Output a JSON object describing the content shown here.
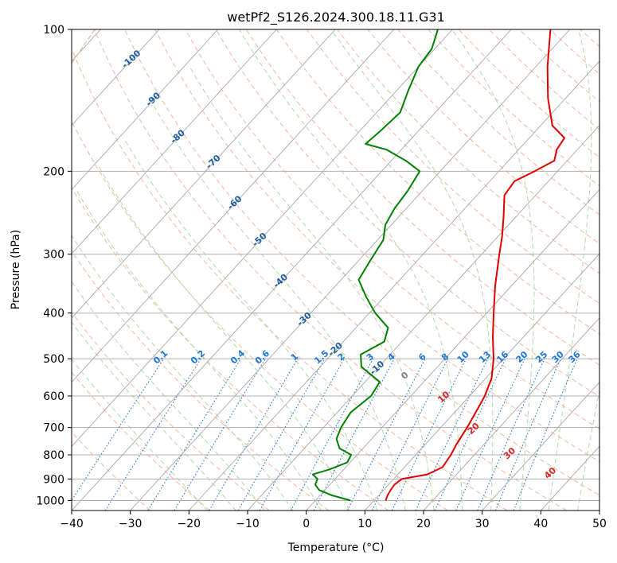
{
  "chart_data": {
    "type": "line",
    "diagram": "skew-T log-P",
    "title": "wetPf2_S126.2024.300.18.11.G31",
    "xlabel": "Temperature (°C)",
    "ylabel": "Pressure (hPa)",
    "xlim": [
      -40,
      50
    ],
    "ylim_hpa": [
      1050,
      100
    ],
    "y_scale": "log",
    "x_ticks": [
      "−40",
      "−30",
      "−20",
      "−10",
      "0",
      "10",
      "20",
      "30",
      "40",
      "50"
    ],
    "y_ticks": [
      "100",
      "200",
      "300",
      "400",
      "500",
      "600",
      "700",
      "800",
      "900",
      "1000"
    ],
    "grid": "horizontal isobars",
    "series": [
      {
        "key": "temperature",
        "color": "#e00000",
        "points": [
          [
            1000,
            12.0
          ],
          [
            975,
            11.5
          ],
          [
            950,
            11.2
          ],
          [
            925,
            11.0
          ],
          [
            900,
            11.4
          ],
          [
            880,
            15.0
          ],
          [
            850,
            16.5
          ],
          [
            800,
            16.0
          ],
          [
            760,
            15.3
          ],
          [
            700,
            14.5
          ],
          [
            650,
            13.6
          ],
          [
            600,
            12.6
          ],
          [
            550,
            11.0
          ],
          [
            500,
            8.3
          ],
          [
            450,
            4.8
          ],
          [
            400,
            1.2
          ],
          [
            350,
            -2.8
          ],
          [
            300,
            -7.0
          ],
          [
            275,
            -9.3
          ],
          [
            250,
            -12.1
          ],
          [
            225,
            -15.3
          ],
          [
            210,
            -15.8
          ],
          [
            200,
            -13.9
          ],
          [
            190,
            -12.2
          ],
          [
            180,
            -13.5
          ],
          [
            170,
            -14.0
          ],
          [
            160,
            -18.0
          ],
          [
            140,
            -23.0
          ],
          [
            120,
            -28.0
          ],
          [
            100,
            -33.3
          ]
        ]
      },
      {
        "key": "dewpoint",
        "color": "#008000",
        "points": [
          [
            1000,
            6.0
          ],
          [
            975,
            2.0
          ],
          [
            950,
            -1.0
          ],
          [
            925,
            -2.5
          ],
          [
            900,
            -3.0
          ],
          [
            880,
            -4.5
          ],
          [
            860,
            -2.5
          ],
          [
            830,
            -0.5
          ],
          [
            800,
            -1.0
          ],
          [
            775,
            -4.0
          ],
          [
            740,
            -6.0
          ],
          [
            700,
            -7.0
          ],
          [
            650,
            -7.7
          ],
          [
            600,
            -6.8
          ],
          [
            560,
            -7.5
          ],
          [
            520,
            -13.0
          ],
          [
            490,
            -15.0
          ],
          [
            460,
            -13.0
          ],
          [
            430,
            -14.5
          ],
          [
            400,
            -19.0
          ],
          [
            370,
            -23.0
          ],
          [
            340,
            -27.0
          ],
          [
            310,
            -28.0
          ],
          [
            280,
            -29.0
          ],
          [
            260,
            -31.0
          ],
          [
            240,
            -32.0
          ],
          [
            220,
            -32.5
          ],
          [
            200,
            -33.5
          ],
          [
            190,
            -37.5
          ],
          [
            180,
            -42.5
          ],
          [
            175,
            -47.0
          ],
          [
            165,
            -46.5
          ],
          [
            150,
            -46.0
          ],
          [
            135,
            -48.0
          ],
          [
            120,
            -50.0
          ],
          [
            110,
            -50.5
          ],
          [
            100,
            -52.5
          ]
        ]
      }
    ],
    "reference_lines": {
      "isotherms_c": [
        -130,
        -120,
        -110,
        -100,
        -90,
        -80,
        -70,
        -60,
        -50,
        -40,
        -30,
        -20,
        -10,
        0,
        10,
        20,
        30,
        40,
        50
      ],
      "dry_adiabats_theta_c": [
        -30,
        -20,
        -10,
        0,
        10,
        20,
        30,
        40,
        50,
        60,
        70,
        80,
        90,
        100,
        110,
        120,
        130,
        140,
        150,
        160,
        170,
        180,
        190,
        200,
        210,
        220,
        230
      ],
      "moist_adiabats_c": [
        -20,
        -15,
        -10,
        -5,
        0,
        5,
        10,
        15,
        20,
        25,
        30,
        35,
        40,
        45
      ],
      "mixing_ratio_lines": [
        0.1,
        0.2,
        0.4,
        0.6,
        1,
        1.5,
        2,
        3,
        4,
        6,
        8,
        10,
        13,
        16,
        20,
        25,
        30,
        36
      ]
    },
    "annotations": {
      "isotherm_labels": [
        {
          "value": -100,
          "text": "-100"
        },
        {
          "value": -90,
          "text": "-90"
        },
        {
          "value": -80,
          "text": "-80"
        },
        {
          "value": -70,
          "text": "-70"
        },
        {
          "value": -60,
          "text": "-60"
        },
        {
          "value": -50,
          "text": "-50"
        },
        {
          "value": -40,
          "text": "-40"
        },
        {
          "value": -30,
          "text": "-30"
        },
        {
          "value": -20,
          "text": "-20"
        },
        {
          "value": -10,
          "text": "-10"
        }
      ],
      "mixing_ratio_labels": [
        "0.1",
        "0.2",
        "0.4",
        "0.6",
        "1",
        "1.5",
        "2",
        "3",
        "4",
        "6",
        "8",
        "10",
        "13",
        "16",
        "20",
        "25",
        "30",
        "36"
      ],
      "warm_isotherm_labels": [
        {
          "value": 0,
          "text": "0",
          "color": "#808080"
        },
        {
          "value": 10,
          "text": "10",
          "color": "#d62728"
        },
        {
          "value": 20,
          "text": "20",
          "color": "#d62728"
        },
        {
          "value": 30,
          "text": "30",
          "color": "#d62728"
        },
        {
          "value": 40,
          "text": "40",
          "color": "#d62728"
        }
      ]
    },
    "colors": {
      "isotherm": "#a8a8a8",
      "dry_adiabat": "#f4a582",
      "moist_adiabat": "#a6d5a0",
      "mixing_ratio": "#1f77d4",
      "isotherm_label": "#1f5fa0",
      "saturation_curve": "#d2b48c"
    }
  }
}
